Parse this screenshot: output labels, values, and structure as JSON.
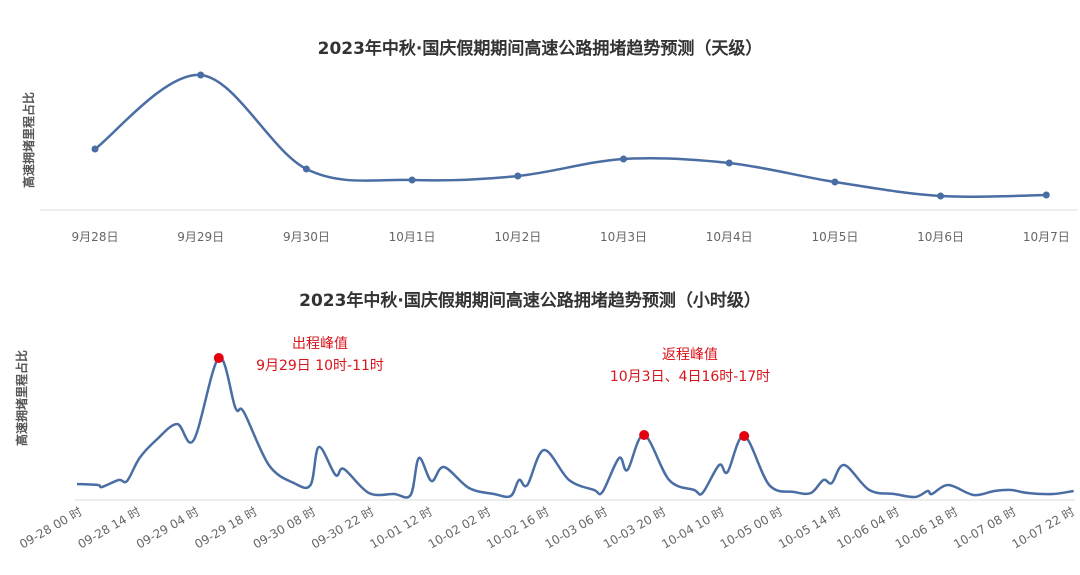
{
  "colors": {
    "line": "#4a6da3",
    "peak": "#e3000f",
    "axis": "#dddddd",
    "annotation": "#d9141b"
  },
  "chart_data": [
    {
      "type": "line",
      "title": "2023年中秋·国庆假期期间高速公路拥堵趋势预测（天级）",
      "ylabel": "高速拥堵里程占比",
      "categories": [
        "9月28日",
        "9月29日",
        "9月30日",
        "10月1日",
        "10月2日",
        "10月3日",
        "10月4日",
        "10月5日",
        "10月6日",
        "10月7日"
      ],
      "values": [
        61,
        135,
        41,
        30,
        34,
        51,
        47,
        28,
        14,
        15
      ],
      "ylim": [
        0,
        150
      ],
      "grid": false,
      "markers": true,
      "smooth": true
    },
    {
      "type": "line",
      "title": "2023年中秋·国庆假期期间高速公路拥堵趋势预测（小时级）",
      "ylabel": "高速拥堵里程占比",
      "tick_labels": [
        "09-28 00 时",
        "09-28 14 时",
        "09-29 04 时",
        "09-29 18 时",
        "09-30 08 时",
        "09-30 22 时",
        "10-01 12 时",
        "10-02 02 时",
        "10-02 16 时",
        "10-03 06 时",
        "10-03 20 时",
        "10-04 10 时",
        "10-05 00 时",
        "10-05 14 时",
        "10-06 04 时",
        "10-06 18 时",
        "10-07 08 时",
        "10-07 22 时"
      ],
      "points": [
        [
          "09-28 00",
          16
        ],
        [
          "09-28 05",
          15
        ],
        [
          "09-28 06",
          13
        ],
        [
          "09-28 10",
          20
        ],
        [
          "09-28 12",
          19
        ],
        [
          "09-28 15",
          42
        ],
        [
          "09-28 19",
          60
        ],
        [
          "09-29 00",
          76
        ],
        [
          "09-29 04",
          60
        ],
        [
          "09-29 10",
          142
        ],
        [
          "09-29 14",
          92
        ],
        [
          "09-29 16",
          88
        ],
        [
          "09-29 22",
          35
        ],
        [
          "09-30 04",
          17
        ],
        [
          "09-30 08",
          15
        ],
        [
          "09-30 10",
          53
        ],
        [
          "09-30 14",
          25
        ],
        [
          "09-30 16",
          31
        ],
        [
          "09-30 22",
          7
        ],
        [
          "10-01 04",
          6
        ],
        [
          "10-01 08",
          5
        ],
        [
          "10-01 10",
          42
        ],
        [
          "10-01 13",
          19
        ],
        [
          "10-01 16",
          33
        ],
        [
          "10-01 22",
          12
        ],
        [
          "10-02 04",
          6
        ],
        [
          "10-02 08",
          4
        ],
        [
          "10-02 10",
          20
        ],
        [
          "10-02 12",
          15
        ],
        [
          "10-02 16",
          50
        ],
        [
          "10-02 22",
          20
        ],
        [
          "10-03 04",
          10
        ],
        [
          "10-03 06",
          8
        ],
        [
          "10-03 10",
          42
        ],
        [
          "10-03 12",
          30
        ],
        [
          "10-03 16",
          65
        ],
        [
          "10-03 22",
          20
        ],
        [
          "10-04 04",
          10
        ],
        [
          "10-04 06",
          7
        ],
        [
          "10-04 10",
          35
        ],
        [
          "10-04 12",
          28
        ],
        [
          "10-04 16",
          64
        ],
        [
          "10-04 22",
          15
        ],
        [
          "10-05 04",
          8
        ],
        [
          "10-05 08",
          7
        ],
        [
          "10-05 11",
          20
        ],
        [
          "10-05 13",
          17
        ],
        [
          "10-05 16",
          35
        ],
        [
          "10-05 22",
          10
        ],
        [
          "10-06 04",
          6
        ],
        [
          "10-06 09",
          3
        ],
        [
          "10-06 12",
          9
        ],
        [
          "10-06 13",
          6
        ],
        [
          "10-06 17",
          15
        ],
        [
          "10-06 23",
          5
        ],
        [
          "10-07 04",
          9
        ],
        [
          "10-07 08",
          10
        ],
        [
          "10-07 12",
          7
        ],
        [
          "10-07 18",
          6
        ],
        [
          "10-07 23",
          9
        ]
      ],
      "ylim": [
        0,
        150
      ],
      "grid": false,
      "highlights": [
        [
          "09-29 10",
          142
        ],
        [
          "10-03 16",
          65
        ],
        [
          "10-04 16",
          64
        ]
      ],
      "annotations": [
        {
          "line1": "出程峰值",
          "line2": "9月29日 10时-11时"
        },
        {
          "line1": "返程峰值",
          "line2": "10月3日、4日16时-17时"
        }
      ]
    }
  ]
}
